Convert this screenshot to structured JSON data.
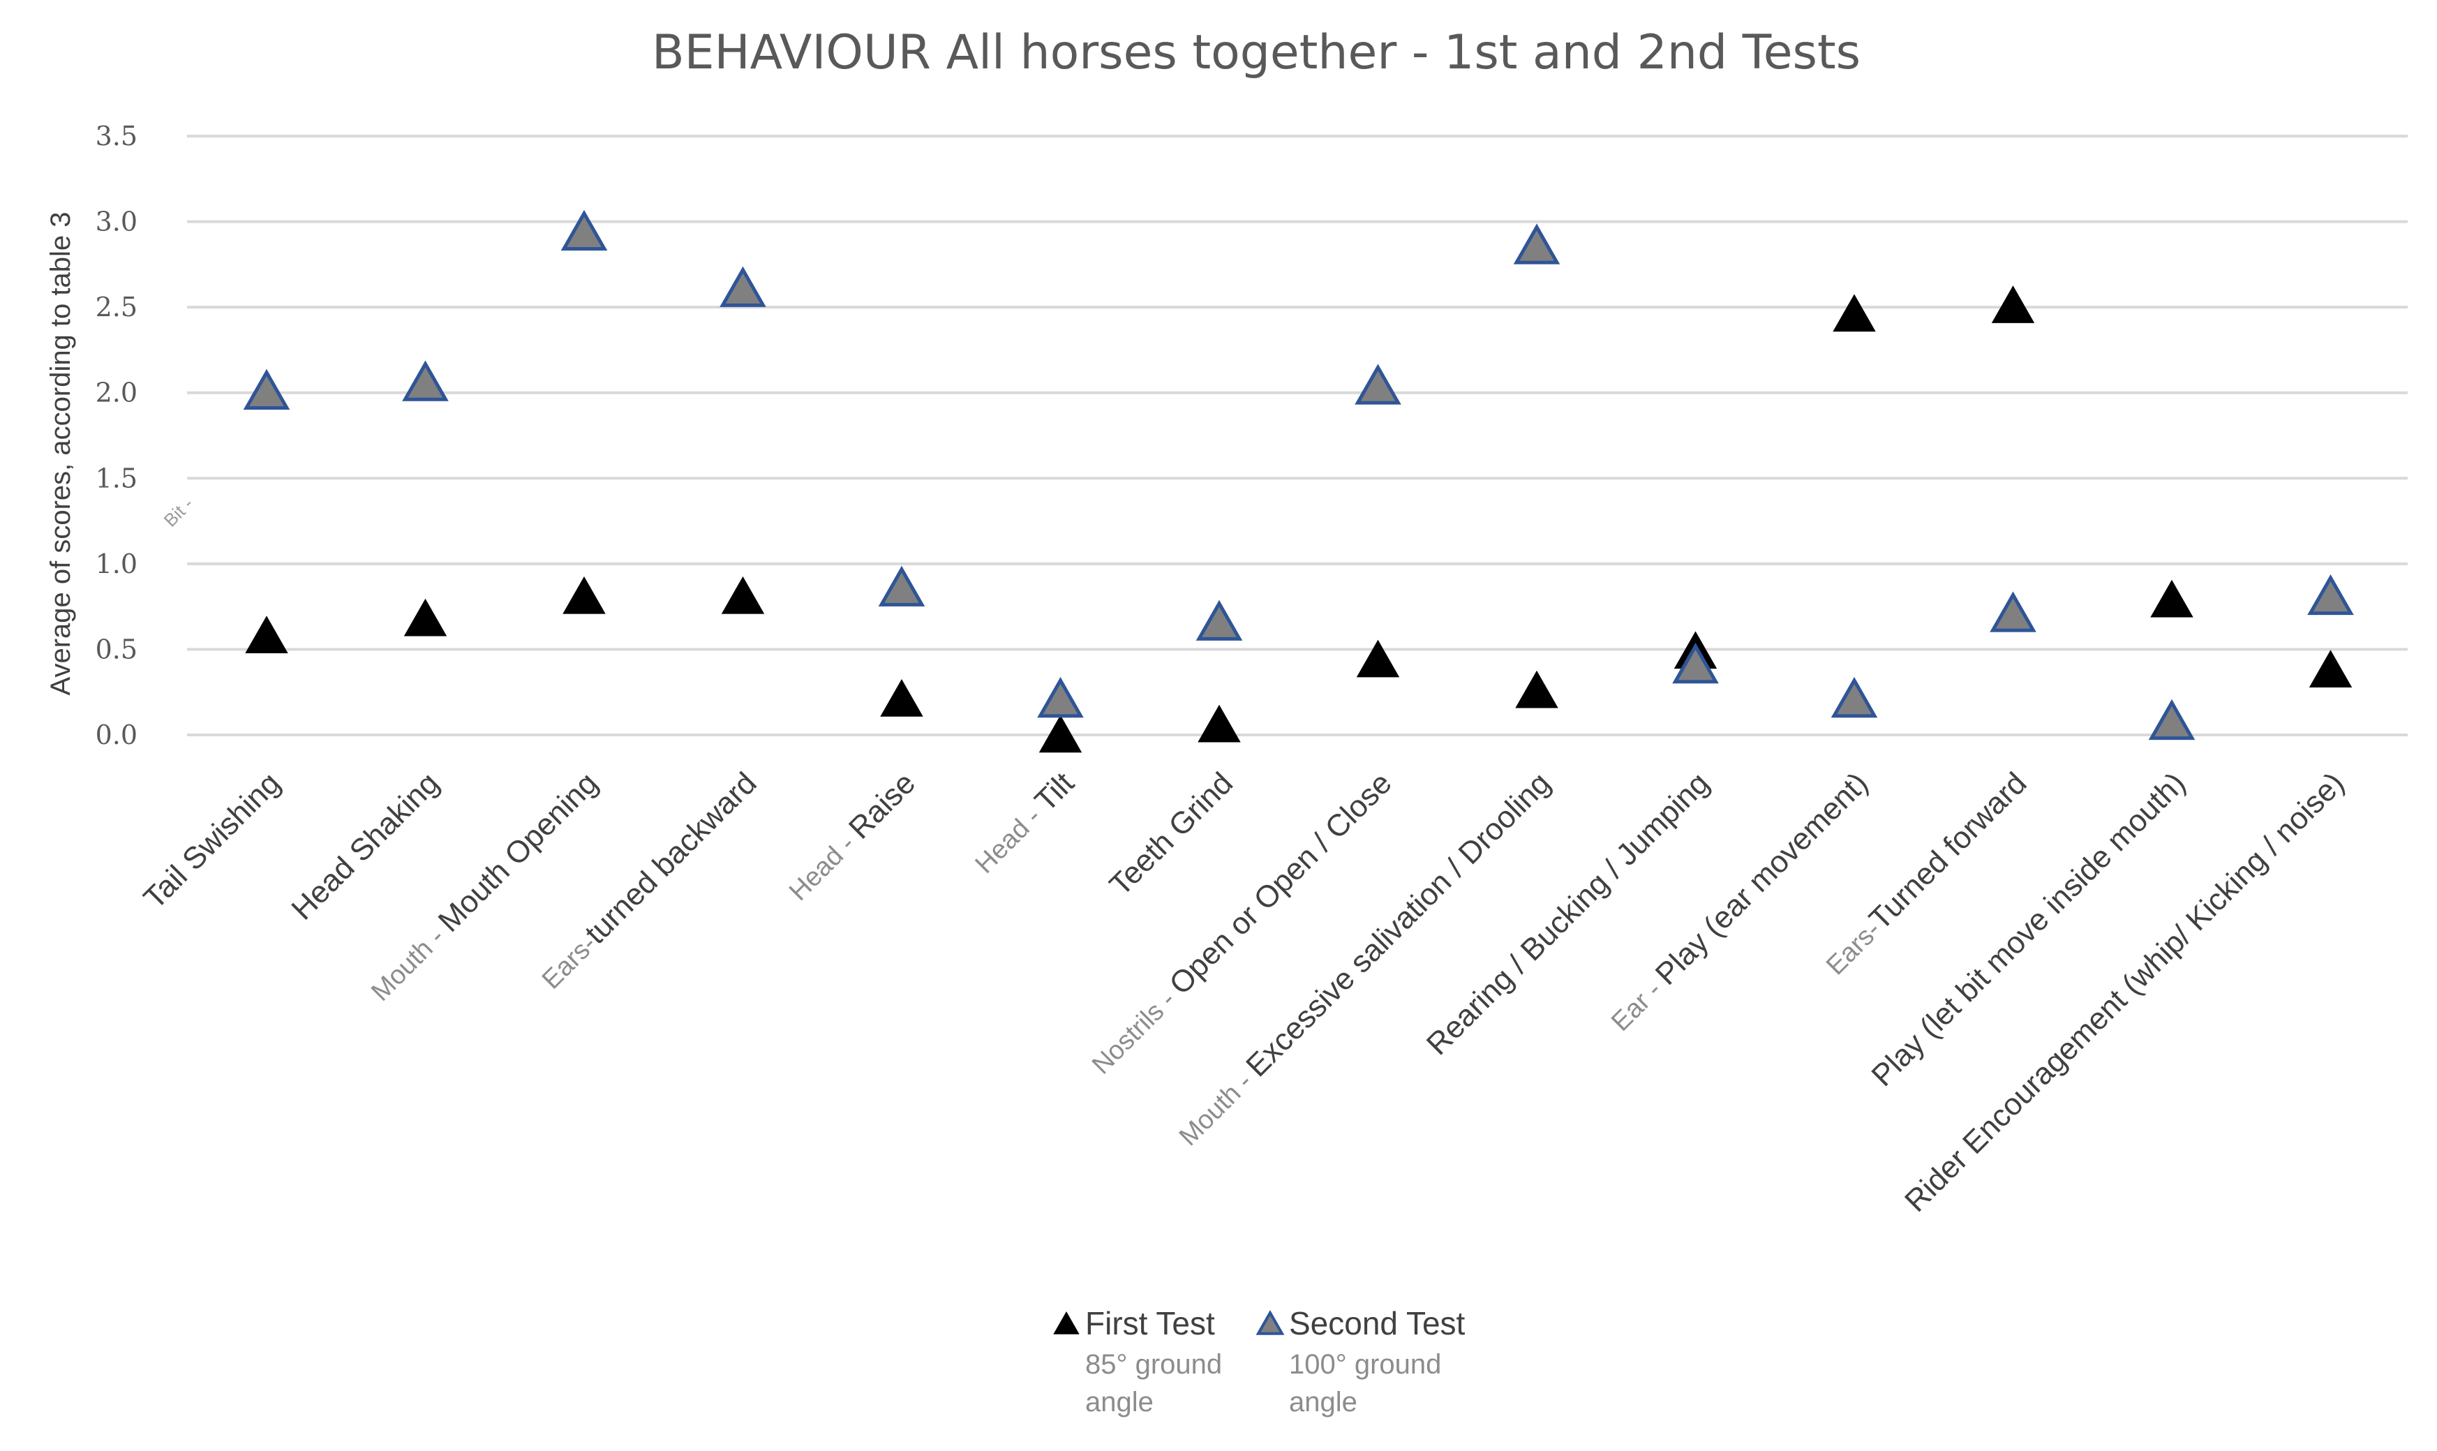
{
  "chart_data": {
    "type": "scatter",
    "title": "BEHAVIOUR All horses together - 1st and 2nd Tests",
    "ylabel": "Average of scores, according to table 3",
    "xlabel": "",
    "ylim": [
      0,
      3.5
    ],
    "y_ticks": [
      "0.0",
      "0.5",
      "1.0",
      "1.5",
      "2.0",
      "2.5",
      "3.0",
      "3.5"
    ],
    "grid": true,
    "legend_position": "bottom",
    "stray_label": "Bit -",
    "categories": [
      {
        "prefix": "",
        "label": "Tail Swishing"
      },
      {
        "prefix": "",
        "label": "Head Shaking"
      },
      {
        "prefix": "Mouth - ",
        "label": "Mouth Opening"
      },
      {
        "prefix": "Ears-",
        "label": "turned backward"
      },
      {
        "prefix": "Head - ",
        "label": "Raise"
      },
      {
        "prefix": "Head - ",
        "label": "Tilt"
      },
      {
        "prefix": "",
        "label": "Teeth Grind"
      },
      {
        "prefix": "Nostrils - ",
        "label": "Open or Open / Close"
      },
      {
        "prefix": "Mouth - ",
        "label": "Excessive salivation / Drooling"
      },
      {
        "prefix": "",
        "label": "Rearing / Bucking / Jumping"
      },
      {
        "prefix": "Ear - ",
        "label": "Play (ear movement)"
      },
      {
        "prefix": "Ears-",
        "label": "Turned forward"
      },
      {
        "prefix": "",
        "label": "Play (let bit move inside mouth)"
      },
      {
        "prefix": "",
        "label": "Rider Encouragement (whip/ Kicking / noise)"
      }
    ],
    "series": [
      {
        "name": "First Test",
        "subtitle": [
          "85°  ground",
          "angle"
        ],
        "color": "#000000",
        "stroke": "#000000",
        "marker": "triangle",
        "values": [
          0.57,
          0.67,
          0.8,
          0.8,
          0.2,
          -0.01,
          0.05,
          0.43,
          0.25,
          0.48,
          2.45,
          2.5,
          0.78,
          0.37
        ]
      },
      {
        "name": "Second Test",
        "subtitle": [
          "100°  ground",
          "angle"
        ],
        "color": "#808080",
        "stroke": "#2f5597",
        "marker": "triangle",
        "values": [
          2.0,
          2.05,
          2.93,
          2.6,
          0.85,
          0.2,
          0.65,
          2.03,
          2.85,
          0.4,
          0.2,
          0.7,
          0.07,
          0.8
        ]
      }
    ]
  }
}
